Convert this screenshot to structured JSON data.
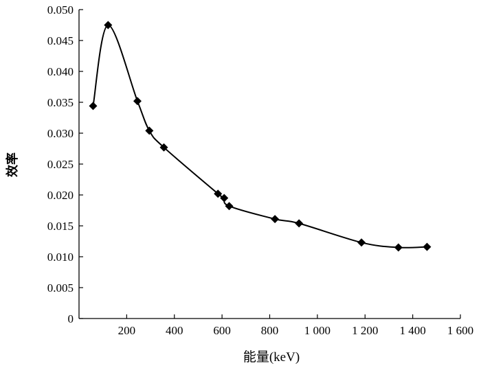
{
  "chart_data": {
    "type": "line",
    "xlabel": "能量(keV)",
    "ylabel": "效率",
    "xlim": [
      0,
      1600
    ],
    "ylim": [
      0,
      0.05
    ],
    "xticks": [
      200,
      400,
      600,
      800,
      1000,
      1200,
      1400,
      1600
    ],
    "xtick_labels": [
      "200",
      "400",
      "600",
      "800",
      "1 000",
      "1 200",
      "1 400",
      "1 600"
    ],
    "yticks": [
      0,
      0.005,
      0.01,
      0.015,
      0.02,
      0.025,
      0.03,
      0.035,
      0.04,
      0.045,
      0.05
    ],
    "ytick_labels": [
      "0",
      "0.005",
      "0.010",
      "0.015",
      "0.020",
      "0.025",
      "0.030",
      "0.035",
      "0.040",
      "0.045",
      "0.050"
    ],
    "grid": false,
    "series": [
      {
        "marker": "diamond",
        "color": "#000000",
        "points": [
          {
            "x": 59,
            "y": 0.0344
          },
          {
            "x": 122,
            "y": 0.0475
          },
          {
            "x": 245,
            "y": 0.0352
          },
          {
            "x": 295,
            "y": 0.0304
          },
          {
            "x": 356,
            "y": 0.0277
          },
          {
            "x": 583,
            "y": 0.0202
          },
          {
            "x": 609,
            "y": 0.0195
          },
          {
            "x": 630,
            "y": 0.0182
          },
          {
            "x": 822,
            "y": 0.0161
          },
          {
            "x": 923,
            "y": 0.0154
          },
          {
            "x": 1185,
            "y": 0.0123
          },
          {
            "x": 1340,
            "y": 0.0115
          },
          {
            "x": 1460,
            "y": 0.0116
          }
        ]
      }
    ]
  }
}
